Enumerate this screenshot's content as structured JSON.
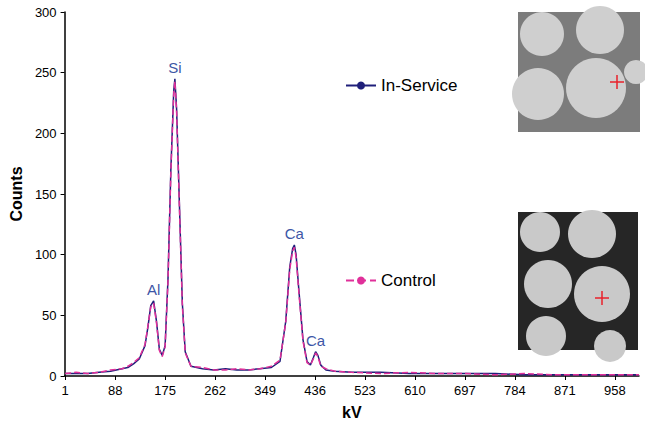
{
  "chart_data": {
    "type": "line",
    "x_label": "kV",
    "y_label": "Counts",
    "xlim": [
      0,
      1000
    ],
    "xticks": [
      1,
      88,
      175,
      262,
      349,
      436,
      523,
      610,
      697,
      784,
      871,
      958
    ],
    "ylim": [
      0,
      300
    ],
    "yticks": [
      0,
      50,
      100,
      150,
      200,
      250,
      300
    ],
    "grid": false,
    "legend": "right",
    "x": [
      1,
      20,
      40,
      60,
      80,
      100,
      110,
      120,
      130,
      140,
      145,
      150,
      155,
      160,
      165,
      170,
      175,
      180,
      185,
      190,
      192,
      195,
      200,
      205,
      210,
      220,
      240,
      260,
      280,
      300,
      320,
      340,
      360,
      375,
      385,
      392,
      397,
      400,
      403,
      408,
      415,
      422,
      428,
      433,
      437,
      441,
      446,
      455,
      470,
      500,
      550,
      600,
      650,
      700,
      750,
      800,
      850,
      900,
      950,
      1000
    ],
    "series": [
      {
        "name": "In-Service",
        "color": "#1f1f7a",
        "line_style": "solid",
        "marker": "none",
        "values": [
          2,
          2,
          2,
          3,
          4,
          6,
          7,
          10,
          14,
          25,
          40,
          58,
          62,
          45,
          22,
          17,
          25,
          80,
          170,
          235,
          245,
          220,
          140,
          60,
          20,
          8,
          6,
          5,
          6,
          5,
          5,
          6,
          7,
          12,
          45,
          90,
          105,
          108,
          100,
          70,
          30,
          12,
          9,
          15,
          20,
          17,
          9,
          5,
          4,
          3,
          3,
          2,
          2,
          2,
          2,
          1,
          1,
          1,
          1,
          1
        ]
      },
      {
        "name": "Control",
        "color": "#e0309a",
        "line_style": "dashed",
        "marker": "none",
        "values": [
          2,
          3,
          2,
          3,
          5,
          6,
          8,
          11,
          15,
          26,
          41,
          57,
          60,
          44,
          21,
          16,
          24,
          78,
          168,
          233,
          243,
          218,
          138,
          58,
          19,
          8,
          7,
          5,
          5,
          6,
          5,
          6,
          8,
          13,
          44,
          88,
          103,
          106,
          98,
          68,
          29,
          11,
          9,
          14,
          19,
          16,
          8,
          6,
          4,
          3,
          2,
          3,
          2,
          2,
          1,
          2,
          1,
          1,
          1,
          1
        ]
      }
    ],
    "annotations": [
      {
        "text": "Al",
        "x": 155,
        "y": 62
      },
      {
        "text": "Si",
        "x": 192,
        "y": 245
      },
      {
        "text": "Ca",
        "x": 400,
        "y": 108
      },
      {
        "text": "Ca",
        "x": 437,
        "y": 20
      }
    ]
  }
}
